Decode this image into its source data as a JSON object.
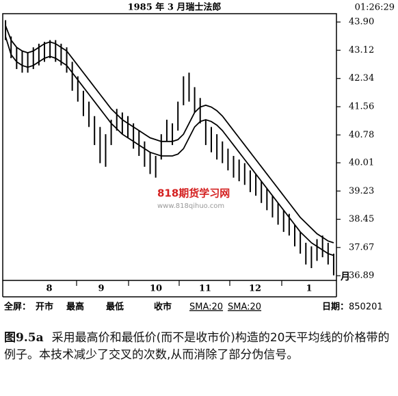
{
  "header": {
    "title": "1985 年 3 月瑞士法郎",
    "time": "01:26:29"
  },
  "chart_data": {
    "type": "range-bar",
    "xlim": [
      0,
      60
    ],
    "ylim": [
      36.76,
      44.13
    ],
    "yticks": [
      {
        "value": 43.9,
        "label": "43.90"
      },
      43.12,
      42.34,
      41.56,
      40.78,
      40.01,
      39.23,
      38.45,
      37.67,
      36.89
    ],
    "month_labels": [
      "8",
      "9",
      "10",
      "11",
      "12",
      "1"
    ],
    "x_unit": "月",
    "color": "#000000",
    "high": [
      43.95,
      43.5,
      43.2,
      43.1,
      43.05,
      43.2,
      43.3,
      43.35,
      43.4,
      43.4,
      43.3,
      43.2,
      42.8,
      42.4,
      42.0,
      41.7,
      41.3,
      41.0,
      40.8,
      41.2,
      41.5,
      41.4,
      41.3,
      41.1,
      40.9,
      40.6,
      40.3,
      40.2,
      40.8,
      41.2,
      41.1,
      41.7,
      42.4,
      42.5,
      42.1,
      41.8,
      41.2,
      41.0,
      40.8,
      40.6,
      40.4,
      40.2,
      40.1,
      40.0,
      39.8,
      39.7,
      39.5,
      39.3,
      39.1,
      38.9,
      38.7,
      38.6,
      38.3,
      38.1,
      37.8,
      37.7,
      37.9,
      38.0,
      37.8,
      37.5
    ],
    "low": [
      43.4,
      42.9,
      42.6,
      42.5,
      42.5,
      42.6,
      42.7,
      42.8,
      42.9,
      42.8,
      42.7,
      42.5,
      42.0,
      41.7,
      41.3,
      41.0,
      40.5,
      40.0,
      39.9,
      40.5,
      40.9,
      40.8,
      40.7,
      40.4,
      40.2,
      39.9,
      39.7,
      39.6,
      40.1,
      40.6,
      40.5,
      40.9,
      41.6,
      41.7,
      41.4,
      41.1,
      40.5,
      40.3,
      40.1,
      40.0,
      39.8,
      39.6,
      39.5,
      39.4,
      39.2,
      39.1,
      38.9,
      38.7,
      38.5,
      38.3,
      38.1,
      38.0,
      37.7,
      37.5,
      37.2,
      37.1,
      37.3,
      37.4,
      37.2,
      36.9
    ],
    "series": [
      {
        "name": "SMA:20",
        "color": "#000000",
        "values": [
          43.8,
          43.4,
          43.2,
          43.1,
          43.05,
          43.1,
          43.2,
          43.3,
          43.35,
          43.3,
          43.2,
          43.1,
          42.9,
          42.7,
          42.5,
          42.3,
          42.1,
          41.9,
          41.7,
          41.5,
          41.35,
          41.2,
          41.1,
          41.0,
          40.9,
          40.8,
          40.7,
          40.65,
          40.6,
          40.6,
          40.6,
          40.65,
          40.8,
          41.1,
          41.4,
          41.55,
          41.6,
          41.55,
          41.45,
          41.3,
          41.1,
          40.9,
          40.7,
          40.5,
          40.3,
          40.1,
          39.9,
          39.7,
          39.5,
          39.3,
          39.1,
          38.9,
          38.7,
          38.5,
          38.35,
          38.2,
          38.05,
          37.95,
          37.85,
          37.8
        ]
      },
      {
        "name": "SMA:20",
        "color": "#000000",
        "values": [
          43.5,
          43.0,
          42.8,
          42.7,
          42.65,
          42.7,
          42.8,
          42.9,
          42.95,
          42.9,
          42.8,
          42.7,
          42.5,
          42.3,
          42.1,
          41.9,
          41.7,
          41.5,
          41.3,
          41.1,
          40.95,
          40.8,
          40.7,
          40.6,
          40.5,
          40.4,
          40.3,
          40.25,
          40.2,
          40.2,
          40.2,
          40.25,
          40.4,
          40.7,
          41.0,
          41.15,
          41.2,
          41.15,
          41.05,
          40.9,
          40.7,
          40.5,
          40.3,
          40.1,
          39.9,
          39.7,
          39.5,
          39.3,
          39.1,
          38.9,
          38.7,
          38.5,
          38.3,
          38.1,
          37.95,
          37.8,
          37.7,
          37.6,
          37.5,
          37.45
        ]
      }
    ]
  },
  "status_bar": {
    "labels": [
      "全屏：",
      "开市",
      "最高",
      "最低",
      "收市"
    ],
    "date_label": "日期：",
    "date": "850201"
  },
  "watermark": {
    "name": "818期货学习网",
    "url": "www.818qihuo.com"
  },
  "caption": {
    "label": "图9.5a",
    "text": "采用最高价和最低价(而不是收市价)构造的20天平均线的价格带的例子。本技术减少了交叉的次数,从而消除了部分伪信号。"
  }
}
